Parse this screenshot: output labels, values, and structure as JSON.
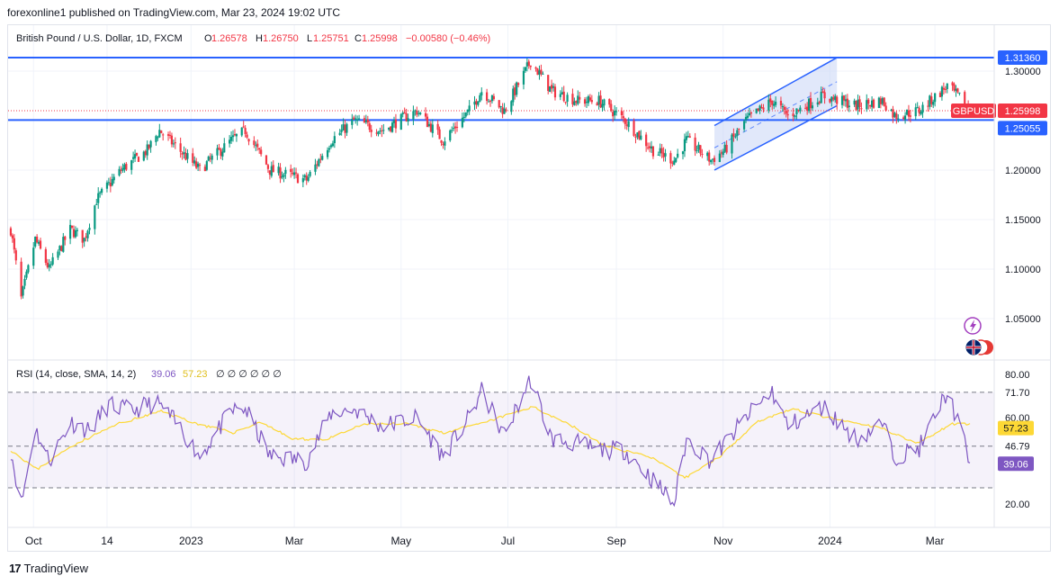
{
  "header": {
    "published": "forexonline1 published on TradingView.com, Mar 23, 2024 19:02 UTC"
  },
  "legend": {
    "symbol": "British Pound / U.S. Dollar, 1D, FXCM",
    "open_label": "O",
    "open": "1.26578",
    "high_label": "H",
    "high": "1.26750",
    "low_label": "L",
    "low": "1.25751",
    "close_label": "C",
    "close": "1.25998",
    "change": "−0.00580 (−0.46%)"
  },
  "rsi_legend": {
    "label": "RSI (14, close, SMA, 14, 2)",
    "rsi": "39.06",
    "sma": "57.23",
    "empty": "∅ ∅ ∅ ∅ ∅ ∅"
  },
  "price_axis": {
    "ticks": [
      "1.30000",
      "1.20000",
      "1.15000",
      "1.10000",
      "1.05000"
    ],
    "badges": {
      "resistance": "1.31360",
      "symbol": "GBPUSD",
      "last": "1.25998",
      "support": "1.25055"
    }
  },
  "rsi_axis": {
    "ticks": [
      "80.00",
      "71.70",
      "60.00",
      "46.79",
      "20.00"
    ],
    "badges": {
      "sma": "57.23",
      "rsi": "39.06"
    }
  },
  "time_axis": {
    "labels": [
      "Oct",
      "14",
      "2023",
      "Mar",
      "May",
      "Jul",
      "Sep",
      "Nov",
      "2024",
      "Mar"
    ]
  },
  "footer": {
    "brand": "TradingView",
    "logo": "17"
  },
  "icons": [
    "lightning-icon",
    "flags-icon"
  ],
  "colors": {
    "up": "#089981",
    "down": "#f23645",
    "hline": "#2962ff",
    "channel_fill": "#c9d6f5",
    "rsi": "#7e57c2",
    "rsi_sma": "#fdd835",
    "badge_gray": "#787b86"
  },
  "chart_data": [
    {
      "type": "candlestick",
      "title": "British Pound / U.S. Dollar, 1D, FXCM",
      "ylim": [
        1.01,
        1.32
      ],
      "x_labels": [
        "Oct",
        "14",
        "2023",
        "Mar",
        "May",
        "Jul",
        "Sep",
        "Nov",
        "2024",
        "Mar"
      ],
      "close_path": [
        [
          "2022-09-20",
          1.14
        ],
        [
          "2022-09-26",
          1.07
        ],
        [
          "2022-10-04",
          1.13
        ],
        [
          "2022-10-12",
          1.1
        ],
        [
          "2022-10-24",
          1.14
        ],
        [
          "2022-11-01",
          1.13
        ],
        [
          "2022-11-08",
          1.17
        ],
        [
          "2022-11-22",
          1.2
        ],
        [
          "2022-12-07",
          1.22
        ],
        [
          "2022-12-14",
          1.24
        ],
        [
          "2023-01-06",
          1.2
        ],
        [
          "2023-01-24",
          1.23
        ],
        [
          "2023-02-01",
          1.24
        ],
        [
          "2023-02-15",
          1.2
        ],
        [
          "2023-03-08",
          1.19
        ],
        [
          "2023-03-22",
          1.23
        ],
        [
          "2023-04-04",
          1.25
        ],
        [
          "2023-04-20",
          1.24
        ],
        [
          "2023-05-10",
          1.26
        ],
        [
          "2023-05-25",
          1.23
        ],
        [
          "2023-06-09",
          1.26
        ],
        [
          "2023-06-16",
          1.28
        ],
        [
          "2023-06-29",
          1.26
        ],
        [
          "2023-07-14",
          1.31
        ],
        [
          "2023-07-26",
          1.28
        ],
        [
          "2023-08-10",
          1.27
        ],
        [
          "2023-08-22",
          1.27
        ],
        [
          "2023-09-06",
          1.25
        ],
        [
          "2023-09-22",
          1.22
        ],
        [
          "2023-10-04",
          1.21
        ],
        [
          "2023-10-11",
          1.23
        ],
        [
          "2023-10-25",
          1.21
        ],
        [
          "2023-11-02",
          1.22
        ],
        [
          "2023-11-14",
          1.25
        ],
        [
          "2023-11-29",
          1.27
        ],
        [
          "2023-12-08",
          1.255
        ],
        [
          "2023-12-28",
          1.275
        ],
        [
          "2024-01-16",
          1.265
        ],
        [
          "2024-01-31",
          1.27
        ],
        [
          "2024-02-07",
          1.255
        ],
        [
          "2024-02-21",
          1.26
        ],
        [
          "2024-03-08",
          1.285
        ],
        [
          "2024-03-15",
          1.273
        ],
        [
          "2024-03-21",
          1.26
        ]
      ],
      "horizontal_lines": [
        {
          "name": "resistance",
          "value": 1.3136
        },
        {
          "name": "support",
          "value": 1.25055
        },
        {
          "name": "last_price",
          "value": 1.25998
        }
      ],
      "channel": {
        "lower": [
          [
            "2023-10-27",
            1.2
          ],
          [
            "2024-01-05",
            1.265
          ]
        ],
        "upper": [
          [
            "2023-10-27",
            1.245
          ],
          [
            "2024-01-05",
            1.3136
          ]
        ]
      }
    },
    {
      "type": "line",
      "title": "RSI (14, close, SMA, 14, 2)",
      "ylim": [
        15,
        85
      ],
      "levels": [
        71.7,
        46.79,
        27.5
      ],
      "series": [
        {
          "name": "RSI",
          "values": [
            [
              "2022-09-20",
              45
            ],
            [
              "2022-09-26",
              20
            ],
            [
              "2022-10-04",
              55
            ],
            [
              "2022-10-12",
              40
            ],
            [
              "2022-10-24",
              58
            ],
            [
              "2022-11-04",
              54
            ],
            [
              "2022-11-15",
              66
            ],
            [
              "2022-11-28",
              63
            ],
            [
              "2022-12-07",
              66
            ],
            [
              "2022-12-14",
              66
            ],
            [
              "2022-12-26",
              55
            ],
            [
              "2023-01-06",
              42
            ],
            [
              "2023-01-24",
              63
            ],
            [
              "2023-02-01",
              64
            ],
            [
              "2023-02-15",
              42
            ],
            [
              "2023-03-08",
              40
            ],
            [
              "2023-03-22",
              62
            ],
            [
              "2023-04-04",
              64
            ],
            [
              "2023-04-20",
              56
            ],
            [
              "2023-05-10",
              60
            ],
            [
              "2023-05-25",
              42
            ],
            [
              "2023-06-09",
              60
            ],
            [
              "2023-06-16",
              72
            ],
            [
              "2023-06-29",
              52
            ],
            [
              "2023-07-14",
              78
            ],
            [
              "2023-07-26",
              50
            ],
            [
              "2023-08-10",
              48
            ],
            [
              "2023-08-22",
              45
            ],
            [
              "2023-09-06",
              45
            ],
            [
              "2023-09-22",
              31
            ],
            [
              "2023-10-04",
              20
            ],
            [
              "2023-10-11",
              50
            ],
            [
              "2023-10-25",
              40
            ],
            [
              "2023-11-02",
              48
            ],
            [
              "2023-11-14",
              60
            ],
            [
              "2023-11-29",
              72
            ],
            [
              "2023-12-08",
              56
            ],
            [
              "2023-12-28",
              65
            ],
            [
              "2024-01-16",
              50
            ],
            [
              "2024-01-31",
              57
            ],
            [
              "2024-02-07",
              42
            ],
            [
              "2024-02-21",
              46
            ],
            [
              "2024-03-08",
              72
            ],
            [
              "2024-03-15",
              56
            ],
            [
              "2024-03-21",
              39.06
            ]
          ]
        },
        {
          "name": "SMA",
          "values": [
            [
              "2022-09-20",
              45
            ],
            [
              "2022-10-05",
              36
            ],
            [
              "2022-10-25",
              47
            ],
            [
              "2022-11-20",
              57
            ],
            [
              "2022-12-15",
              63
            ],
            [
              "2023-01-05",
              57
            ],
            [
              "2023-01-25",
              53
            ],
            [
              "2023-02-10",
              58
            ],
            [
              "2023-02-28",
              50
            ],
            [
              "2023-03-20",
              50
            ],
            [
              "2023-04-10",
              57
            ],
            [
              "2023-05-05",
              57
            ],
            [
              "2023-05-25",
              53
            ],
            [
              "2023-06-15",
              57
            ],
            [
              "2023-07-15",
              65
            ],
            [
              "2023-08-05",
              57
            ],
            [
              "2023-08-25",
              47
            ],
            [
              "2023-09-20",
              42
            ],
            [
              "2023-10-10",
              32
            ],
            [
              "2023-10-30",
              42
            ],
            [
              "2023-11-20",
              58
            ],
            [
              "2023-12-10",
              64
            ],
            [
              "2024-01-05",
              59
            ],
            [
              "2024-01-31",
              55
            ],
            [
              "2024-02-20",
              48
            ],
            [
              "2024-03-10",
              57
            ],
            [
              "2024-03-21",
              57.23
            ]
          ]
        }
      ]
    }
  ]
}
